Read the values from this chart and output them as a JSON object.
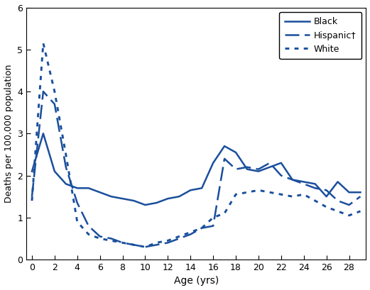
{
  "ages": [
    0,
    1,
    2,
    3,
    4,
    5,
    6,
    7,
    8,
    9,
    10,
    11,
    12,
    13,
    14,
    15,
    16,
    17,
    18,
    19,
    20,
    21,
    22,
    23,
    24,
    25,
    26,
    27,
    28,
    29
  ],
  "black": [
    2.1,
    3.0,
    2.1,
    1.8,
    1.7,
    1.7,
    1.6,
    1.5,
    1.45,
    1.4,
    1.3,
    1.35,
    1.45,
    1.5,
    1.65,
    1.7,
    2.3,
    2.7,
    2.55,
    2.15,
    2.1,
    2.2,
    2.3,
    1.9,
    1.85,
    1.8,
    1.5,
    1.85,
    1.6,
    1.6
  ],
  "hispanic": [
    1.5,
    4.0,
    3.7,
    2.2,
    1.35,
    0.8,
    0.55,
    0.5,
    0.4,
    0.35,
    0.3,
    0.35,
    0.4,
    0.5,
    0.6,
    0.75,
    0.8,
    2.4,
    2.15,
    2.2,
    2.15,
    2.3,
    2.0,
    1.9,
    1.8,
    1.7,
    1.65,
    1.4,
    1.3,
    1.5
  ],
  "white": [
    1.4,
    5.15,
    4.0,
    2.5,
    0.9,
    0.6,
    0.5,
    0.45,
    0.4,
    0.35,
    0.3,
    0.4,
    0.45,
    0.55,
    0.65,
    0.75,
    1.0,
    1.1,
    1.55,
    1.6,
    1.65,
    1.6,
    1.55,
    1.5,
    1.55,
    1.4,
    1.25,
    1.15,
    1.05,
    1.15
  ],
  "color": "#1a4f9c",
  "xlabel": "Age (yrs)",
  "ylabel": "Deaths per 100,000 population",
  "ylim": [
    0,
    6
  ],
  "xlim": [
    -0.5,
    29.5
  ],
  "yticks": [
    0,
    1,
    2,
    3,
    4,
    5,
    6
  ],
  "xticks": [
    0,
    2,
    4,
    6,
    8,
    10,
    12,
    14,
    16,
    18,
    20,
    22,
    24,
    26,
    28
  ],
  "legend_labels": [
    "Black",
    "Hispanic†",
    "White"
  ],
  "line_width": 1.8
}
